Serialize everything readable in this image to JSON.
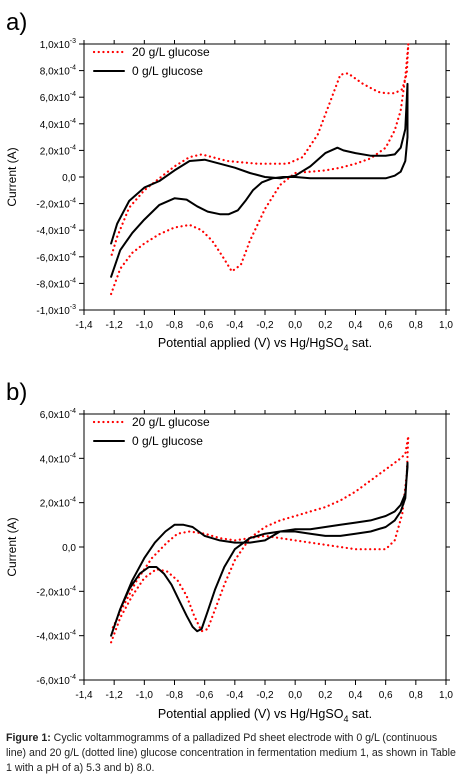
{
  "chart_data": [
    {
      "type": "line",
      "panel_label": "a)",
      "xlabel": "Potential applied (V) vs Hg/HgSO",
      "xlabel_sub": "4",
      "xlabel_suffix": " sat.",
      "ylabel": "Current (A)",
      "xlim": [
        -1.4,
        1.0
      ],
      "ylim": [
        -0.001,
        0.001
      ],
      "x_ticks": [
        -1.4,
        -1.2,
        -1.0,
        -0.8,
        -0.6,
        -0.4,
        -0.2,
        0.0,
        0.2,
        0.4,
        0.6,
        0.8,
        1.0
      ],
      "x_tick_labels": [
        "-1,4",
        "-1,2",
        "-1,0",
        "-0,8",
        "-0,6",
        "-0,4",
        "-0,2",
        "0,0",
        "0,2",
        "0,4",
        "0,6",
        "0,8",
        "1,0"
      ],
      "y_ticks": [
        -0.001,
        -0.0008,
        -0.0006,
        -0.0004,
        -0.0002,
        0.0,
        0.0002,
        0.0004,
        0.0006,
        0.0008,
        0.001
      ],
      "y_tick_labels": [
        {
          "m": "-1,0x10",
          "e": "-3"
        },
        {
          "m": "-8,0x10",
          "e": "-4"
        },
        {
          "m": "-6,0x10",
          "e": "-4"
        },
        {
          "m": "-4,0x10",
          "e": "-4"
        },
        {
          "m": "-2,0x10",
          "e": "-4"
        },
        {
          "m": "0,0",
          "e": ""
        },
        {
          "m": "2,0x10",
          "e": "-4"
        },
        {
          "m": "4,0x10",
          "e": "-4"
        },
        {
          "m": "6,0x10",
          "e": "-4"
        },
        {
          "m": "8,0x10",
          "e": "-4"
        },
        {
          "m": "1,0x10",
          "e": "-3"
        }
      ],
      "legend_position": "top-left",
      "series": [
        {
          "name": "20 g/L glucose",
          "style": "dotted",
          "color": "#ff0000",
          "x": [
            -1.22,
            -1.16,
            -1.08,
            -1.0,
            -0.9,
            -0.8,
            -0.7,
            -0.62,
            -0.55,
            -0.48,
            -0.42,
            -0.36,
            -0.3,
            -0.2,
            -0.1,
            0.0,
            0.1,
            0.2,
            0.3,
            0.4,
            0.5,
            0.6,
            0.66,
            0.7,
            0.73,
            0.75,
            0.74,
            0.71,
            0.66,
            0.6,
            0.55,
            0.45,
            0.35,
            0.3,
            0.25,
            0.15,
            0.05,
            -0.05,
            -0.15,
            -0.25,
            -0.35,
            -0.45,
            -0.55,
            -0.62,
            -0.7,
            -0.8,
            -0.9,
            -1.0,
            -1.1,
            -1.18,
            -1.22
          ],
          "y": [
            -0.00088,
            -0.00069,
            -0.00057,
            -0.0005,
            -0.00043,
            -0.00038,
            -0.00036,
            -0.0004,
            -0.00048,
            -0.0006,
            -0.00071,
            -0.00066,
            -0.00048,
            -0.00024,
            -6e-05,
            3e-05,
            4e-05,
            5e-05,
            7e-05,
            0.0001,
            0.00014,
            0.00022,
            0.00035,
            0.0005,
            0.00075,
            0.001,
            0.00078,
            0.00066,
            0.00063,
            0.00063,
            0.00064,
            0.0007,
            0.00078,
            0.00077,
            0.00062,
            0.00032,
            0.00015,
            0.0001,
            0.0001,
            0.0001,
            0.00011,
            0.00012,
            0.00015,
            0.00017,
            0.00015,
            8e-05,
            -1e-05,
            -0.0001,
            -0.00023,
            -0.00045,
            -0.0006
          ]
        },
        {
          "name": "0 g/L glucose",
          "style": "solid",
          "color": "#000000",
          "x": [
            -1.22,
            -1.16,
            -1.08,
            -1.0,
            -0.9,
            -0.8,
            -0.72,
            -0.65,
            -0.58,
            -0.5,
            -0.44,
            -0.38,
            -0.33,
            -0.28,
            -0.22,
            -0.15,
            -0.08,
            0.0,
            0.1,
            0.2,
            0.3,
            0.4,
            0.5,
            0.6,
            0.66,
            0.7,
            0.73,
            0.745,
            0.745,
            0.73,
            0.7,
            0.66,
            0.6,
            0.5,
            0.4,
            0.32,
            0.28,
            0.2,
            0.1,
            0.0,
            -0.1,
            -0.2,
            -0.3,
            -0.4,
            -0.5,
            -0.6,
            -0.7,
            -0.8,
            -0.9,
            -1.0,
            -1.1,
            -1.18,
            -1.22
          ],
          "y": [
            -0.00075,
            -0.00055,
            -0.00042,
            -0.00032,
            -0.00021,
            -0.00016,
            -0.00017,
            -0.00022,
            -0.00026,
            -0.00028,
            -0.00028,
            -0.00025,
            -0.00018,
            -0.0001,
            -4e-05,
            -1e-05,
            0.0,
            0.0,
            -1e-05,
            -1e-05,
            -1e-05,
            -1e-05,
            -1e-05,
            -1e-05,
            1e-05,
            4e-05,
            0.00012,
            0.0003,
            0.0007,
            0.00036,
            0.00022,
            0.00017,
            0.00016,
            0.00016,
            0.00018,
            0.0002,
            0.00022,
            0.00018,
            8e-05,
            1e-05,
            -1e-05,
            0.0,
            3e-05,
            7e-05,
            0.0001,
            0.00013,
            0.00012,
            5e-05,
            -3e-05,
            -8e-05,
            -0.00018,
            -0.00035,
            -0.0005
          ]
        }
      ]
    },
    {
      "type": "line",
      "panel_label": "b)",
      "xlabel": "Potential applied (V) vs Hg/HgSO",
      "xlabel_sub": "4",
      "xlabel_suffix": " sat.",
      "ylabel": "Current (A)",
      "xlim": [
        -1.4,
        1.0
      ],
      "ylim": [
        -0.0006,
        0.0006
      ],
      "x_ticks": [
        -1.4,
        -1.2,
        -1.0,
        -0.8,
        -0.6,
        -0.4,
        -0.2,
        0.0,
        0.2,
        0.4,
        0.6,
        0.8,
        1.0
      ],
      "x_tick_labels": [
        "-1,4",
        "-1,2",
        "-1,0",
        "-0,8",
        "-0,6",
        "-0,4",
        "-0,2",
        "0,0",
        "0,2",
        "0,4",
        "0,6",
        "0,8",
        "1,0"
      ],
      "y_ticks": [
        -0.0006,
        -0.0004,
        -0.0002,
        0.0,
        0.0002,
        0.0004,
        0.0006
      ],
      "y_tick_labels": [
        {
          "m": "-6,0x10",
          "e": "-4"
        },
        {
          "m": "-4,0x10",
          "e": "-4"
        },
        {
          "m": "-2,0x10",
          "e": "-4"
        },
        {
          "m": "0,0",
          "e": ""
        },
        {
          "m": "2,0x10",
          "e": "-4"
        },
        {
          "m": "4,0x10",
          "e": "-4"
        },
        {
          "m": "6,0x10",
          "e": "-4"
        }
      ],
      "legend_position": "top-left",
      "series": [
        {
          "name": "20 g/L glucose",
          "style": "dotted",
          "color": "#ff0000",
          "x": [
            -1.22,
            -1.16,
            -1.08,
            -1.0,
            -0.92,
            -0.85,
            -0.78,
            -0.72,
            -0.67,
            -0.62,
            -0.58,
            -0.53,
            -0.47,
            -0.4,
            -0.3,
            -0.2,
            -0.1,
            0.0,
            0.1,
            0.2,
            0.3,
            0.4,
            0.5,
            0.6,
            0.66,
            0.7,
            0.73,
            0.75,
            0.74,
            0.71,
            0.66,
            0.6,
            0.5,
            0.4,
            0.3,
            0.2,
            0.1,
            0.0,
            -0.1,
            -0.2,
            -0.3,
            -0.4,
            -0.5,
            -0.6,
            -0.7,
            -0.78,
            -0.85,
            -0.95,
            -1.05,
            -1.15,
            -1.22
          ],
          "y": [
            -0.00043,
            -0.00032,
            -0.00022,
            -0.00014,
            -0.0001,
            -0.00011,
            -0.00015,
            -0.00022,
            -0.00031,
            -0.00038,
            -0.00037,
            -0.00028,
            -0.00017,
            -6e-05,
            4e-05,
            9e-05,
            0.00012,
            0.00014,
            0.00016,
            0.00018,
            0.00021,
            0.00025,
            0.0003,
            0.00035,
            0.00038,
            0.0004,
            0.00042,
            0.0005,
            0.00033,
            0.00015,
            3e-05,
            -1e-05,
            -1e-05,
            -1e-05,
            0.0,
            1e-05,
            2e-05,
            3e-05,
            4e-05,
            5e-05,
            4e-05,
            3e-05,
            4e-05,
            6e-05,
            7e-05,
            6e-05,
            2e-05,
            -5e-05,
            -0.00015,
            -0.00028,
            -0.00038
          ]
        },
        {
          "name": "0 g/L glucose",
          "style": "solid",
          "color": "#000000",
          "x": [
            -1.22,
            -1.16,
            -1.1,
            -1.03,
            -0.97,
            -0.92,
            -0.87,
            -0.82,
            -0.77,
            -0.72,
            -0.68,
            -0.65,
            -0.62,
            -0.58,
            -0.53,
            -0.47,
            -0.4,
            -0.3,
            -0.2,
            -0.1,
            0.0,
            0.1,
            0.2,
            0.3,
            0.4,
            0.5,
            0.6,
            0.66,
            0.7,
            0.73,
            0.745,
            0.745,
            0.73,
            0.7,
            0.66,
            0.6,
            0.5,
            0.4,
            0.3,
            0.2,
            0.1,
            0.0,
            -0.1,
            -0.2,
            -0.3,
            -0.4,
            -0.5,
            -0.6,
            -0.68,
            -0.74,
            -0.8,
            -0.86,
            -0.93,
            -1.0,
            -1.08,
            -1.16,
            -1.22
          ],
          "y": [
            -0.0004,
            -0.00028,
            -0.00019,
            -0.00012,
            -9e-05,
            -9e-05,
            -0.00012,
            -0.00017,
            -0.00024,
            -0.00031,
            -0.00036,
            -0.00038,
            -0.00037,
            -0.00029,
            -0.00019,
            -9e-05,
            -1e-05,
            4e-05,
            6e-05,
            7e-05,
            7e-05,
            6e-05,
            5e-05,
            5e-05,
            6e-05,
            7e-05,
            9e-05,
            0.00012,
            0.00016,
            0.00022,
            0.00038,
            0.00036,
            0.00024,
            0.00019,
            0.00016,
            0.00014,
            0.00012,
            0.00011,
            0.0001,
            9e-05,
            8e-05,
            8e-05,
            7e-05,
            3e-05,
            2e-05,
            2e-05,
            3e-05,
            5e-05,
            9e-05,
            0.0001,
            0.0001,
            7e-05,
            2e-05,
            -5e-05,
            -0.00015,
            -0.00028,
            -0.0004
          ]
        }
      ]
    }
  ],
  "caption": {
    "label": "Figure 1:",
    "text": " Cyclic voltammogramms of a palladized Pd sheet electrode with 0 g/L (continuous line) and 20 g/L (dotted line) glucose concentration in fermentation medium 1, as shown in Table 1 with a pH of a) 5.3 and b) 8.0."
  }
}
